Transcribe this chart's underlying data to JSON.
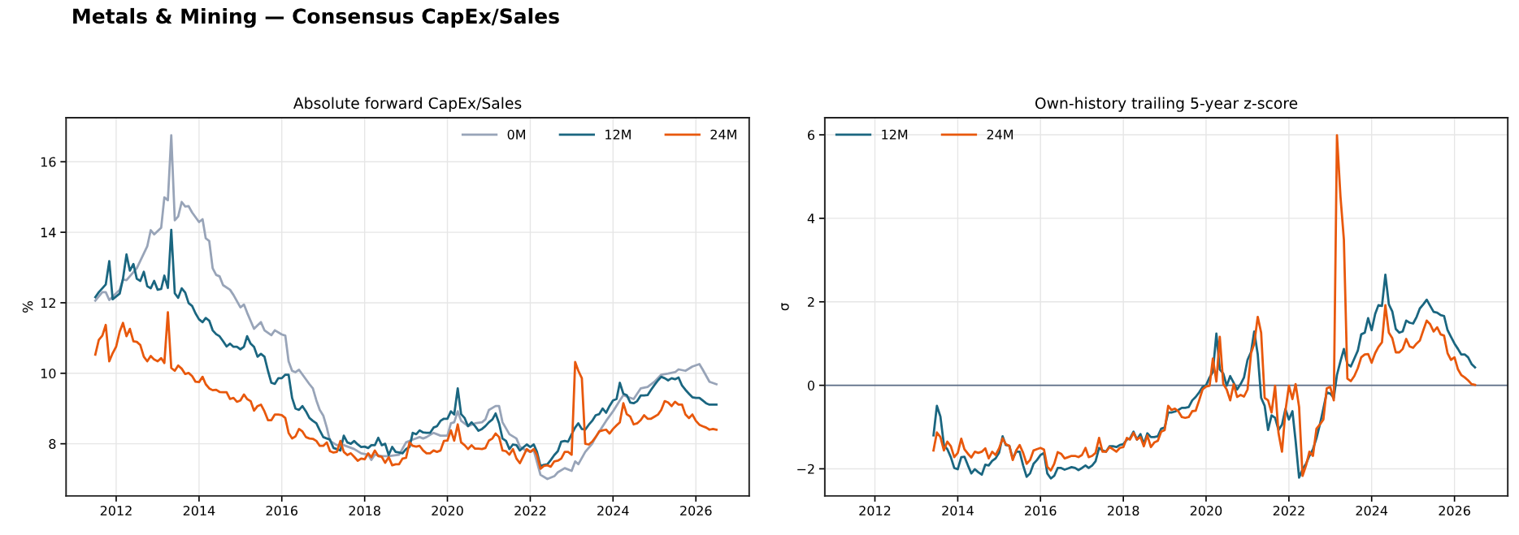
{
  "chart_data": [
    {
      "type": "line",
      "title": "Absolute forward CapEx/Sales",
      "ylabel": "%",
      "annotations": [
        "Metals & Mining — Consensus CapEx/Sales"
      ],
      "xlim": [
        "2010-10-16",
        "2027-04-16"
      ],
      "ylim": [
        6.52,
        17.25
      ],
      "xticks": [
        "2012",
        "2014",
        "2016",
        "2018",
        "2020",
        "2022",
        "2024",
        "2026"
      ],
      "yticks": [
        8,
        10,
        12,
        14,
        16
      ],
      "grid": true,
      "legend": "top right",
      "line_style": "solid",
      "marker": "none",
      "x": [
        "2011-07",
        "2011-08",
        "2011-09",
        "2011-10",
        "2011-11",
        "2011-12",
        "2012-01",
        "2012-02",
        "2012-03",
        "2012-04",
        "2012-05",
        "2012-06",
        "2012-07",
        "2012-08",
        "2012-09",
        "2012-10",
        "2012-11",
        "2012-12",
        "2013-01",
        "2013-02",
        "2013-03",
        "2013-04",
        "2013-05",
        "2013-06",
        "2013-07",
        "2013-08",
        "2013-09",
        "2013-10",
        "2013-11",
        "2013-12",
        "2014-01",
        "2014-02",
        "2014-03",
        "2014-04",
        "2014-05",
        "2014-06",
        "2014-07",
        "2014-08",
        "2014-09",
        "2014-10",
        "2014-11",
        "2014-12",
        "2015-01",
        "2015-02",
        "2015-03",
        "2015-04",
        "2015-05",
        "2015-06",
        "2015-07",
        "2015-08",
        "2015-09",
        "2015-10",
        "2015-11",
        "2015-12",
        "2016-01",
        "2016-02",
        "2016-03",
        "2016-04",
        "2016-05",
        "2016-06",
        "2016-07",
        "2016-08",
        "2016-09",
        "2016-10",
        "2016-11",
        "2016-12",
        "2017-01",
        "2017-02",
        "2017-03",
        "2017-04",
        "2017-05",
        "2017-06",
        "2017-07",
        "2017-08",
        "2017-09",
        "2017-10",
        "2017-11",
        "2017-12",
        "2018-01",
        "2018-02",
        "2018-03",
        "2018-04",
        "2018-05",
        "2018-06",
        "2018-07",
        "2018-08",
        "2018-09",
        "2018-10",
        "2018-11",
        "2018-12",
        "2019-01",
        "2019-02",
        "2019-03",
        "2019-04",
        "2019-05",
        "2019-06",
        "2019-07",
        "2019-08",
        "2019-09",
        "2019-10",
        "2019-11",
        "2019-12",
        "2020-01",
        "2020-02",
        "2020-03",
        "2020-04",
        "2020-05",
        "2020-06",
        "2020-07",
        "2020-08",
        "2020-09",
        "2020-10",
        "2020-11",
        "2020-12",
        "2021-01",
        "2021-02",
        "2021-03",
        "2021-04",
        "2021-05",
        "2021-06",
        "2021-07",
        "2021-08",
        "2021-09",
        "2021-10",
        "2021-11",
        "2021-12",
        "2022-01",
        "2022-02",
        "2022-03",
        "2022-04",
        "2022-05",
        "2022-06",
        "2022-07",
        "2022-08",
        "2022-09",
        "2022-10",
        "2022-11",
        "2022-12",
        "2023-01",
        "2023-02",
        "2023-03",
        "2023-04",
        "2023-05",
        "2023-06",
        "2023-07",
        "2023-08",
        "2023-09",
        "2023-10",
        "2023-11",
        "2023-12",
        "2024-01",
        "2024-02",
        "2024-03",
        "2024-04",
        "2024-05",
        "2024-06",
        "2024-07",
        "2024-08",
        "2024-09",
        "2024-10",
        "2024-11",
        "2024-12",
        "2025-01",
        "2025-02",
        "2025-03",
        "2025-04",
        "2025-05",
        "2025-06",
        "2025-07",
        "2025-08",
        "2025-09",
        "2025-10",
        "2025-11",
        "2025-12",
        "2026-01",
        "2026-02",
        "2026-03",
        "2026-04",
        "2026-05",
        "2026-06",
        "2026-07"
      ],
      "series": [
        {
          "name": "0M",
          "color": "#98a4b8",
          "x": [
            "2011-07",
            "2011-09",
            "2011-10",
            "2011-11",
            "2012-02",
            "2012-03",
            "2012-04",
            "2012-07",
            "2012-10",
            "2012-11",
            "2012-12",
            "2013-02",
            "2013-03",
            "2013-04",
            "2013-05",
            "2013-06",
            "2013-07",
            "2013-08",
            "2013-09",
            "2013-10",
            "2013-11",
            "2014-01",
            "2014-02",
            "2014-03",
            "2014-04",
            "2014-05",
            "2014-06",
            "2014-07",
            "2014-08",
            "2014-10",
            "2014-11",
            "2015-01",
            "2015-02",
            "2015-03",
            "2015-05",
            "2015-07",
            "2015-08",
            "2015-10",
            "2015-11",
            "2016-01",
            "2016-02",
            "2016-03",
            "2016-04",
            "2016-05",
            "2016-06",
            "2016-09",
            "2016-10",
            "2016-11",
            "2016-12",
            "2017-01",
            "2017-02",
            "2017-03",
            "2017-05",
            "2017-07",
            "2017-10",
            "2017-12",
            "2018-02",
            "2018-03",
            "2018-04",
            "2018-06",
            "2018-08",
            "2018-11",
            "2019-01",
            "2019-03",
            "2019-05",
            "2019-06",
            "2019-07",
            "2019-09",
            "2019-10",
            "2019-11",
            "2020-01",
            "2020-02",
            "2020-03",
            "2020-04",
            "2020-05",
            "2020-07",
            "2020-09",
            "2020-11",
            "2020-12",
            "2021-01",
            "2021-03",
            "2021-04",
            "2021-05",
            "2021-07",
            "2021-09",
            "2021-10",
            "2021-11",
            "2022-01",
            "2022-02",
            "2022-04",
            "2022-06",
            "2022-08",
            "2022-09",
            "2022-11",
            "2023-01",
            "2023-02",
            "2023-03",
            "2023-05",
            "2023-07",
            "2023-08",
            "2023-11",
            "2024-01",
            "2024-03",
            "2024-04",
            "2024-05",
            "2024-07",
            "2024-09",
            "2024-11",
            "2025-01",
            "2025-03",
            "2025-05",
            "2025-07",
            "2025-08",
            "2025-10",
            "2025-12",
            "2026-02",
            "2026-03",
            "2026-05",
            "2026-07"
          ],
          "values": [
            12.06,
            12.3,
            12.3,
            12.08,
            12.37,
            12.66,
            12.64,
            12.98,
            13.6,
            14.06,
            13.94,
            14.13,
            14.99,
            14.91,
            16.75,
            14.34,
            14.45,
            14.86,
            14.73,
            14.74,
            14.56,
            14.29,
            14.37,
            13.83,
            13.75,
            12.98,
            12.79,
            12.75,
            12.5,
            12.37,
            12.22,
            11.87,
            11.95,
            11.72,
            11.26,
            11.45,
            11.22,
            11.08,
            11.22,
            11.1,
            11.07,
            10.34,
            10.07,
            10.03,
            10.1,
            9.69,
            9.57,
            9.23,
            8.96,
            8.8,
            8.46,
            8.08,
            7.96,
            7.96,
            7.85,
            7.73,
            7.69,
            7.54,
            7.69,
            7.65,
            7.65,
            7.69,
            8.04,
            8.12,
            8.19,
            8.15,
            8.19,
            8.31,
            8.27,
            8.23,
            8.23,
            8.58,
            8.61,
            8.92,
            8.65,
            8.5,
            8.58,
            8.61,
            8.69,
            8.96,
            9.07,
            9.07,
            8.61,
            8.27,
            8.15,
            7.92,
            7.85,
            7.77,
            7.81,
            7.12,
            7.0,
            7.08,
            7.19,
            7.31,
            7.23,
            7.5,
            7.42,
            7.77,
            8.0,
            8.19,
            8.65,
            8.92,
            9.23,
            9.38,
            9.34,
            9.27,
            9.57,
            9.61,
            9.76,
            9.96,
            9.99,
            10.03,
            10.11,
            10.07,
            10.19,
            10.26,
            10.11,
            9.76,
            9.69
          ]
        },
        {
          "name": "12M",
          "color": "#1a6680",
          "values": [
            12.16,
            12.3,
            12.41,
            12.52,
            13.18,
            12.1,
            12.18,
            12.26,
            12.68,
            13.37,
            12.91,
            13.1,
            12.68,
            12.62,
            12.88,
            12.47,
            12.41,
            12.62,
            12.37,
            12.39,
            12.77,
            12.42,
            14.07,
            12.27,
            12.14,
            12.41,
            12.29,
            11.99,
            11.91,
            11.7,
            11.53,
            11.45,
            11.57,
            11.49,
            11.22,
            11.11,
            11.05,
            10.91,
            10.76,
            10.84,
            10.75,
            10.75,
            10.68,
            10.75,
            11.05,
            10.84,
            10.75,
            10.47,
            10.55,
            10.47,
            10.07,
            9.73,
            9.7,
            9.86,
            9.86,
            9.96,
            9.96,
            9.3,
            9.0,
            8.96,
            9.07,
            8.92,
            8.73,
            8.65,
            8.58,
            8.38,
            8.19,
            8.15,
            8.12,
            7.88,
            7.85,
            7.81,
            8.23,
            8.04,
            8.0,
            8.08,
            7.98,
            7.91,
            7.92,
            7.88,
            7.96,
            7.96,
            8.17,
            7.96,
            8.0,
            7.68,
            7.91,
            7.77,
            7.75,
            7.73,
            7.85,
            7.91,
            8.31,
            8.27,
            8.38,
            8.32,
            8.31,
            8.31,
            8.46,
            8.5,
            8.65,
            8.71,
            8.71,
            8.92,
            8.83,
            9.57,
            8.84,
            8.73,
            8.5,
            8.61,
            8.5,
            8.37,
            8.42,
            8.5,
            8.61,
            8.69,
            8.86,
            8.58,
            8.15,
            8.08,
            7.85,
            7.98,
            7.96,
            7.81,
            7.9,
            7.98,
            7.91,
            7.98,
            7.77,
            7.37,
            7.4,
            7.42,
            7.54,
            7.68,
            7.79,
            8.06,
            8.08,
            8.06,
            8.27,
            8.46,
            8.58,
            8.42,
            8.4,
            8.54,
            8.65,
            8.81,
            8.84,
            9.0,
            8.88,
            9.07,
            9.23,
            9.27,
            9.73,
            9.42,
            9.38,
            9.17,
            9.15,
            9.21,
            9.37,
            9.37,
            9.38,
            9.53,
            9.67,
            9.8,
            9.9,
            9.86,
            9.8,
            9.86,
            9.83,
            9.88,
            9.65,
            9.53,
            9.42,
            9.32,
            9.3,
            9.3,
            9.23,
            9.15,
            9.11,
            9.11,
            9.11
          ]
        },
        {
          "name": "24M",
          "color": "#e8580c",
          "values": [
            10.53,
            10.95,
            11.07,
            11.37,
            10.34,
            10.57,
            10.76,
            11.18,
            11.43,
            11.05,
            11.26,
            10.91,
            10.89,
            10.8,
            10.47,
            10.34,
            10.49,
            10.39,
            10.34,
            10.43,
            10.29,
            11.73,
            10.15,
            10.07,
            10.22,
            10.13,
            9.98,
            10.01,
            9.92,
            9.76,
            9.75,
            9.9,
            9.69,
            9.57,
            9.52,
            9.53,
            9.47,
            9.46,
            9.46,
            9.27,
            9.3,
            9.19,
            9.23,
            9.4,
            9.27,
            9.21,
            8.94,
            9.07,
            9.11,
            8.92,
            8.67,
            8.67,
            8.83,
            8.83,
            8.81,
            8.73,
            8.31,
            8.15,
            8.21,
            8.42,
            8.35,
            8.19,
            8.15,
            8.14,
            8.08,
            7.94,
            7.94,
            8.04,
            7.79,
            7.75,
            7.77,
            8.08,
            7.77,
            7.68,
            7.73,
            7.63,
            7.52,
            7.58,
            7.56,
            7.73,
            7.62,
            7.81,
            7.65,
            7.63,
            7.46,
            7.62,
            7.39,
            7.42,
            7.42,
            7.58,
            7.6,
            8.04,
            7.94,
            7.92,
            7.94,
            7.81,
            7.73,
            7.73,
            7.81,
            7.77,
            7.81,
            8.08,
            8.09,
            8.38,
            8.09,
            8.55,
            8.04,
            7.96,
            7.85,
            7.96,
            7.86,
            7.86,
            7.85,
            7.88,
            8.09,
            8.15,
            8.29,
            8.19,
            7.81,
            7.79,
            7.69,
            7.85,
            7.58,
            7.45,
            7.65,
            7.85,
            7.77,
            7.85,
            7.68,
            7.29,
            7.37,
            7.39,
            7.35,
            7.5,
            7.52,
            7.58,
            7.77,
            7.77,
            7.69,
            10.32,
            10.07,
            9.86,
            8.0,
            7.98,
            8.06,
            8.19,
            8.35,
            8.38,
            8.4,
            8.29,
            8.42,
            8.52,
            8.61,
            9.15,
            8.84,
            8.77,
            8.55,
            8.58,
            8.67,
            8.81,
            8.71,
            8.71,
            8.77,
            8.83,
            8.96,
            9.21,
            9.17,
            9.07,
            9.19,
            9.11,
            9.11,
            8.83,
            8.73,
            8.83,
            8.65,
            8.54,
            8.5,
            8.46,
            8.4,
            8.42,
            8.4
          ]
        }
      ]
    },
    {
      "type": "line",
      "title": "Own-history trailing 5-year z-score",
      "ylabel": "σ",
      "xlim": [
        "2010-10-16",
        "2027-04-16"
      ],
      "ylim": [
        -2.65,
        6.41
      ],
      "xticks": [
        "2012",
        "2014",
        "2016",
        "2018",
        "2020",
        "2022",
        "2024",
        "2026"
      ],
      "yticks": [
        {
          "value": -2,
          "label": "−2"
        },
        0,
        2,
        4,
        6
      ],
      "grid": true,
      "legend": "top left",
      "line_style": "solid",
      "marker": "none",
      "ref_lines": [
        {
          "axis": "y",
          "value": 0,
          "color": "#5a6b85"
        }
      ],
      "x": [
        "2013-06",
        "2013-07",
        "2013-08",
        "2013-09",
        "2013-10",
        "2013-11",
        "2013-12",
        "2014-01",
        "2014-02",
        "2014-03",
        "2014-04",
        "2014-05",
        "2014-06",
        "2014-07",
        "2014-08",
        "2014-09",
        "2014-10",
        "2014-11",
        "2014-12",
        "2015-01",
        "2015-02",
        "2015-03",
        "2015-04",
        "2015-05",
        "2015-06",
        "2015-07",
        "2015-08",
        "2015-09",
        "2015-10",
        "2015-11",
        "2015-12",
        "2016-01",
        "2016-02",
        "2016-03",
        "2016-04",
        "2016-05",
        "2016-06",
        "2016-07",
        "2016-08",
        "2016-09",
        "2016-10",
        "2016-11",
        "2016-12",
        "2017-01",
        "2017-02",
        "2017-03",
        "2017-04",
        "2017-05",
        "2017-06",
        "2017-07",
        "2017-08",
        "2017-09",
        "2017-10",
        "2017-11",
        "2017-12",
        "2018-01",
        "2018-02",
        "2018-03",
        "2018-04",
        "2018-05",
        "2018-06",
        "2018-07",
        "2018-08",
        "2018-09",
        "2018-10",
        "2018-11",
        "2018-12",
        "2019-01",
        "2019-02",
        "2019-03",
        "2019-04",
        "2019-05",
        "2019-06",
        "2019-07",
        "2019-08",
        "2019-09",
        "2019-10",
        "2019-11",
        "2019-12",
        "2020-01",
        "2020-02",
        "2020-03",
        "2020-04",
        "2020-05",
        "2020-06",
        "2020-07",
        "2020-08",
        "2020-09",
        "2020-10",
        "2020-11",
        "2020-12",
        "2021-01",
        "2021-02",
        "2021-03",
        "2021-04",
        "2021-05",
        "2021-06",
        "2021-07",
        "2021-08",
        "2021-09",
        "2021-10",
        "2021-11",
        "2021-12",
        "2022-01",
        "2022-02",
        "2022-03",
        "2022-04",
        "2022-05",
        "2022-06",
        "2022-07",
        "2022-08",
        "2022-09",
        "2022-10",
        "2022-11",
        "2022-12",
        "2023-01",
        "2023-02",
        "2023-03",
        "2023-04",
        "2023-05",
        "2023-06",
        "2023-07",
        "2023-08",
        "2023-09",
        "2023-10",
        "2023-11",
        "2023-12",
        "2024-01",
        "2024-02",
        "2024-03",
        "2024-04",
        "2024-05",
        "2024-06",
        "2024-07",
        "2024-08",
        "2024-09",
        "2024-10",
        "2024-11",
        "2024-12",
        "2025-01",
        "2025-02",
        "2025-03",
        "2025-04",
        "2025-05",
        "2025-06",
        "2025-07",
        "2025-08",
        "2025-09",
        "2025-10",
        "2025-11",
        "2025-12",
        "2026-01",
        "2026-02",
        "2026-03",
        "2026-04",
        "2026-05",
        "2026-06",
        "2026-07"
      ],
      "series": [
        {
          "name": "12M",
          "color": "#1a6680",
          "values": [
            -1.2,
            -0.49,
            -0.75,
            -1.43,
            -1.53,
            -1.72,
            -1.98,
            -2.01,
            -1.72,
            -1.71,
            -1.92,
            -2.11,
            -2.01,
            -2.08,
            -2.14,
            -1.9,
            -1.92,
            -1.81,
            -1.75,
            -1.61,
            -1.22,
            -1.43,
            -1.45,
            -1.75,
            -1.59,
            -1.59,
            -1.92,
            -2.19,
            -2.11,
            -1.88,
            -1.79,
            -1.67,
            -1.62,
            -2.11,
            -2.23,
            -2.17,
            -1.98,
            -1.98,
            -2.02,
            -1.99,
            -1.96,
            -1.98,
            -2.03,
            -1.98,
            -1.92,
            -1.98,
            -1.92,
            -1.82,
            -1.5,
            -1.56,
            -1.59,
            -1.46,
            -1.46,
            -1.48,
            -1.43,
            -1.41,
            -1.3,
            -1.27,
            -1.11,
            -1.3,
            -1.17,
            -1.4,
            -1.15,
            -1.24,
            -1.24,
            -1.22,
            -1.04,
            -1.01,
            -0.65,
            -0.65,
            -0.63,
            -0.59,
            -0.54,
            -0.54,
            -0.52,
            -0.36,
            -0.28,
            -0.17,
            -0.04,
            0.0,
            0.19,
            0.32,
            1.24,
            0.38,
            0.28,
            -0.01,
            0.22,
            0.06,
            -0.1,
            0.03,
            0.19,
            0.61,
            0.8,
            1.29,
            0.74,
            -0.3,
            -0.49,
            -1.07,
            -0.72,
            -0.78,
            -1.07,
            -0.94,
            -0.57,
            -0.82,
            -0.62,
            -1.33,
            -2.21,
            -2.01,
            -1.88,
            -1.69,
            -1.53,
            -1.27,
            -0.94,
            -0.56,
            -0.17,
            -0.2,
            -0.3,
            0.25,
            0.58,
            0.87,
            0.51,
            0.45,
            0.64,
            0.83,
            1.22,
            1.26,
            1.61,
            1.32,
            1.71,
            1.92,
            1.9,
            2.65,
            1.94,
            1.77,
            1.35,
            1.26,
            1.29,
            1.55,
            1.5,
            1.48,
            1.64,
            1.84,
            1.94,
            2.05,
            1.9,
            1.76,
            1.74,
            1.68,
            1.66,
            1.32,
            1.16,
            1.0,
            0.87,
            0.74,
            0.74,
            0.67,
            0.51,
            0.43
          ]
        },
        {
          "name": "24M",
          "color": "#e8580c",
          "values": [
            -1.56,
            -1.13,
            -1.24,
            -1.56,
            -1.35,
            -1.46,
            -1.72,
            -1.62,
            -1.28,
            -1.53,
            -1.64,
            -1.73,
            -1.59,
            -1.62,
            -1.59,
            -1.51,
            -1.75,
            -1.59,
            -1.67,
            -1.51,
            -1.27,
            -1.41,
            -1.45,
            -1.79,
            -1.56,
            -1.43,
            -1.62,
            -1.88,
            -1.79,
            -1.56,
            -1.53,
            -1.5,
            -1.54,
            -1.95,
            -2.04,
            -1.88,
            -1.6,
            -1.64,
            -1.75,
            -1.72,
            -1.69,
            -1.69,
            -1.72,
            -1.67,
            -1.5,
            -1.72,
            -1.69,
            -1.62,
            -1.26,
            -1.59,
            -1.59,
            -1.48,
            -1.53,
            -1.59,
            -1.5,
            -1.48,
            -1.26,
            -1.3,
            -1.14,
            -1.3,
            -1.24,
            -1.46,
            -1.2,
            -1.48,
            -1.37,
            -1.33,
            -1.11,
            -1.07,
            -0.49,
            -0.59,
            -0.56,
            -0.62,
            -0.76,
            -0.78,
            -0.76,
            -0.62,
            -0.61,
            -0.36,
            -0.1,
            -0.03,
            -0.01,
            0.64,
            0.09,
            1.16,
            0.03,
            -0.1,
            -0.36,
            0.03,
            -0.28,
            -0.23,
            -0.27,
            -0.1,
            0.77,
            1.0,
            1.64,
            1.26,
            -0.3,
            -0.36,
            -0.65,
            -0.01,
            -1.14,
            -1.59,
            -0.62,
            -0.01,
            -0.33,
            0.03,
            -0.52,
            -2.17,
            -1.92,
            -1.59,
            -1.69,
            -1.04,
            -0.94,
            -0.82,
            -0.07,
            -0.04,
            -0.36,
            5.99,
            4.52,
            3.49,
            0.16,
            0.1,
            0.22,
            0.41,
            0.67,
            0.74,
            0.75,
            0.54,
            0.77,
            0.92,
            1.03,
            1.92,
            1.26,
            1.13,
            0.79,
            0.79,
            0.87,
            1.11,
            0.93,
            0.9,
            1.0,
            1.07,
            1.32,
            1.55,
            1.46,
            1.29,
            1.39,
            1.22,
            1.19,
            0.77,
            0.61,
            0.67,
            0.38,
            0.25,
            0.19,
            0.12,
            0.03,
            0.01
          ]
        }
      ]
    }
  ]
}
